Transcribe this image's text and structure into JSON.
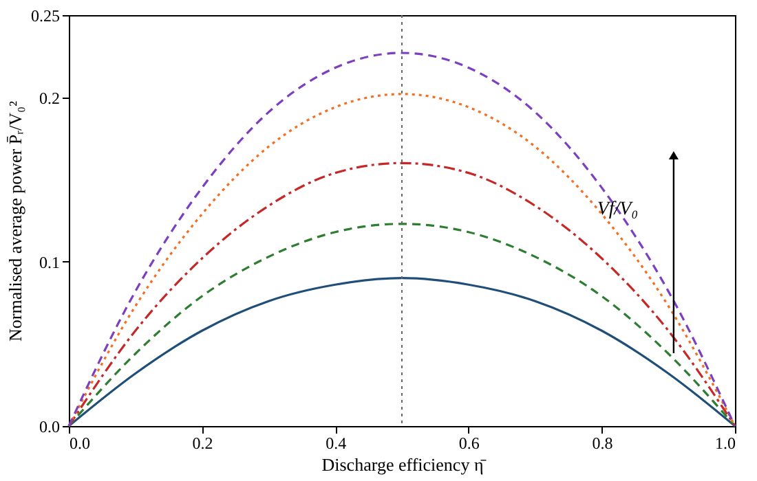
{
  "chart_data": {
    "type": "line",
    "xlabel": "Discharge efficiency η̄",
    "ylabel": "Normalised average power P̄ᵣ/V₀²",
    "x": [
      0,
      0.1,
      0.2,
      0.3,
      0.4,
      0.5,
      0.6,
      0.7,
      0.8,
      0.9,
      1.0
    ],
    "series": [
      {
        "color": "#1f4e79",
        "line_style": "solid",
        "values": [
          0,
          0.032,
          0.058,
          0.076,
          0.086,
          0.09,
          0.086,
          0.076,
          0.058,
          0.032,
          0
        ]
      },
      {
        "color": "#2e7d32",
        "line_style": "dashed",
        "values": [
          0,
          0.044,
          0.079,
          0.103,
          0.118,
          0.123,
          0.118,
          0.103,
          0.079,
          0.044,
          0
        ]
      },
      {
        "color": "#c62828",
        "line_style": "dashdot",
        "values": [
          0,
          0.058,
          0.102,
          0.134,
          0.154,
          0.16,
          0.154,
          0.134,
          0.102,
          0.058,
          0
        ]
      },
      {
        "color": "#f36f21",
        "line_style": "dotted",
        "values": [
          0,
          0.073,
          0.129,
          0.17,
          0.194,
          0.202,
          0.194,
          0.17,
          0.129,
          0.073,
          0
        ]
      },
      {
        "color": "#7b3fbf",
        "line_style": "dashed",
        "values": [
          0,
          0.082,
          0.145,
          0.191,
          0.218,
          0.227,
          0.218,
          0.191,
          0.145,
          0.082,
          0
        ]
      }
    ],
    "xlim": [
      0,
      1.0
    ],
    "xticks": [
      {
        "value": 0,
        "label": "0.0"
      },
      0.2,
      0.4,
      0.6,
      0.8,
      {
        "value": 1,
        "label": "1.0"
      }
    ],
    "ylim": [
      0,
      0.25
    ],
    "yticks": [
      {
        "value": 0,
        "label": "0.0"
      },
      0.1,
      0.2,
      0.25
    ],
    "ref_lines": [
      {
        "axis": "x",
        "value": 0.5,
        "color": "#666666",
        "line_style": "dotted"
      }
    ],
    "annotations": [
      "Vf/V₀"
    ],
    "grid": false,
    "marker": "none"
  }
}
